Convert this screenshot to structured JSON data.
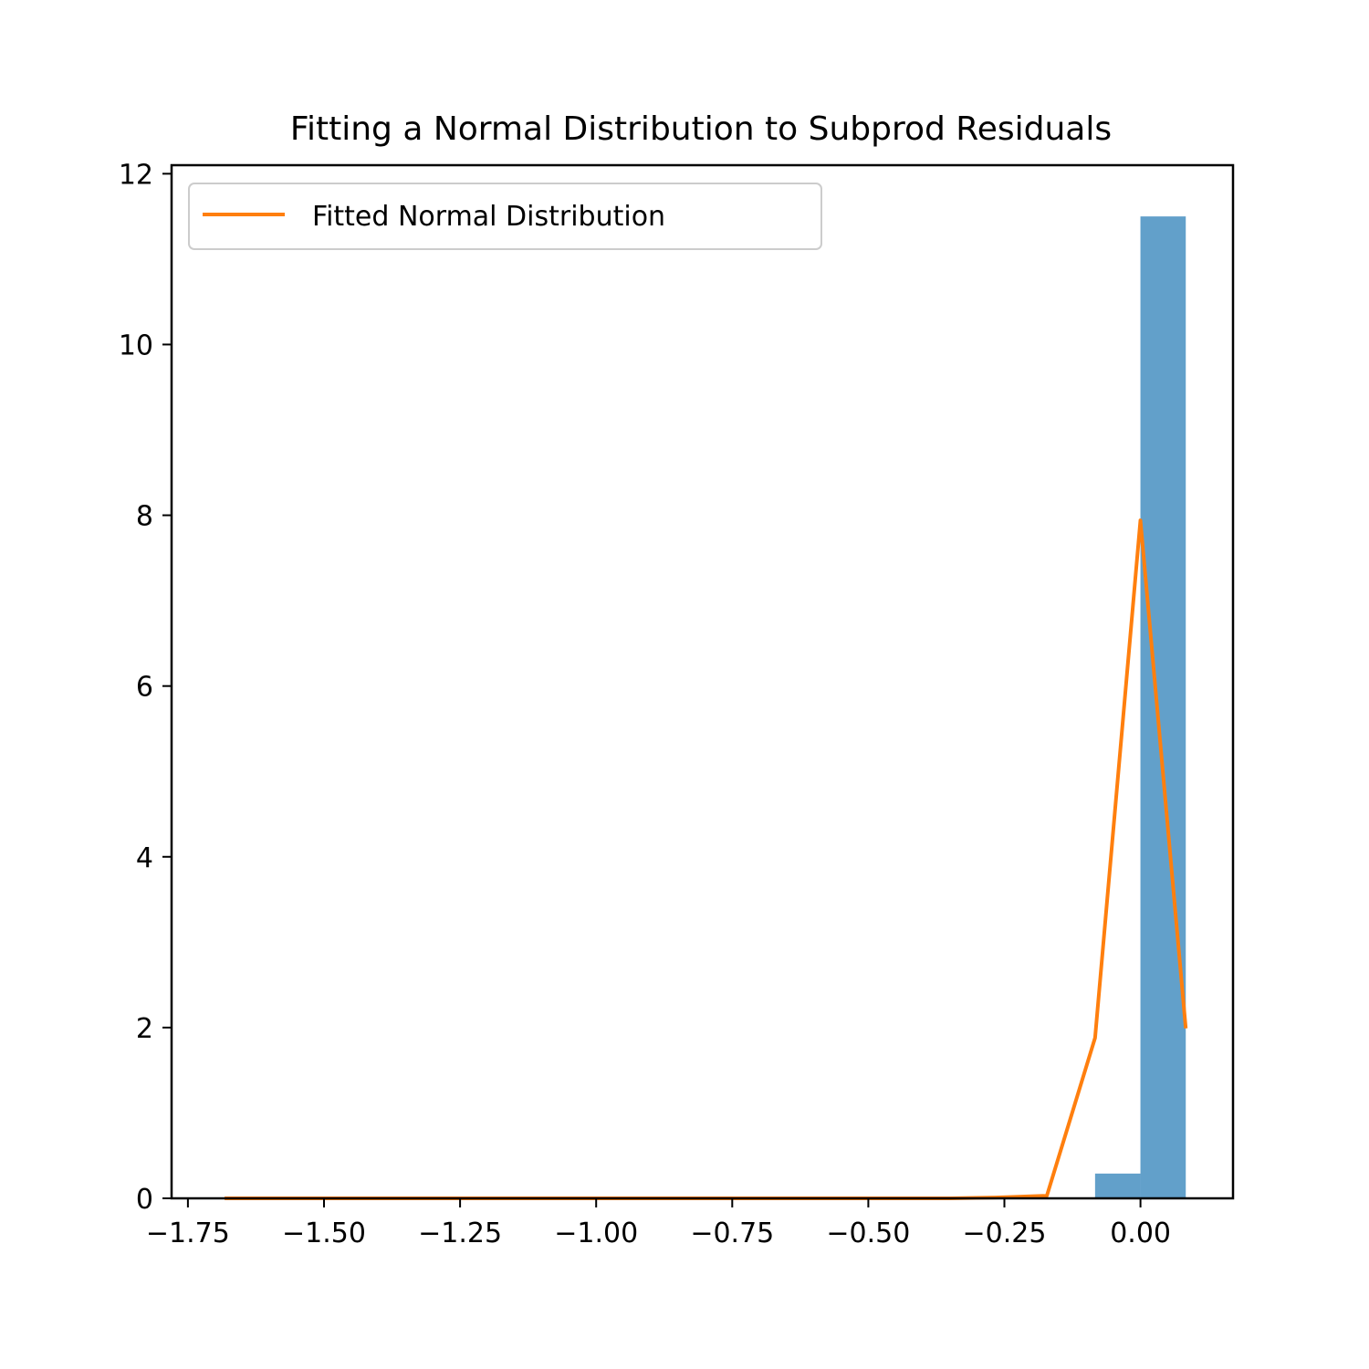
{
  "chart_data": {
    "type": "bar",
    "title": "Fitting a Normal Distribution to Subprod Residuals",
    "xlabel": "",
    "ylabel": "",
    "xlim": [
      -1.78,
      0.17
    ],
    "ylim": [
      0,
      12.1
    ],
    "x_ticks": [
      -1.75,
      -1.5,
      -1.25,
      -1.0,
      -0.75,
      -0.5,
      -0.25,
      0.0
    ],
    "x_tick_labels": [
      "−1.75",
      "−1.50",
      "−1.25",
      "−1.00",
      "−0.75",
      "−0.50",
      "−0.25",
      "0.00"
    ],
    "y_ticks": [
      0,
      2,
      4,
      6,
      8,
      10,
      12
    ],
    "y_tick_labels": [
      "0",
      "2",
      "4",
      "6",
      "8",
      "10",
      "12"
    ],
    "grid": false,
    "legend_position": "top-left",
    "histogram": {
      "color": "#1f77b4",
      "bins": [
        {
          "left": -0.0834,
          "right": -0.0001,
          "value": 0.29
        },
        {
          "left": -0.0001,
          "right": 0.0832,
          "value": 11.5
        }
      ]
    },
    "series": [
      {
        "name": "Fitted Normal Distribution",
        "color": "#ff7f0e",
        "x": [
          -1.6826,
          -1.5991,
          -1.5158,
          -1.4325,
          -1.3492,
          -1.2659,
          -1.1826,
          -1.0993,
          -1.016,
          -0.9327,
          -0.8494,
          -0.7661,
          -0.6828,
          -0.5995,
          -0.5162,
          -0.4329,
          -0.3496,
          -0.2663,
          -0.172,
          -0.0834,
          -0.0001,
          0.0832
        ],
        "y": [
          0,
          0,
          0,
          0,
          0,
          0,
          0,
          0,
          0,
          0,
          0,
          0,
          0,
          0,
          0,
          0,
          0,
          0.01,
          0.03,
          1.88,
          7.94,
          1.99
        ]
      }
    ]
  }
}
